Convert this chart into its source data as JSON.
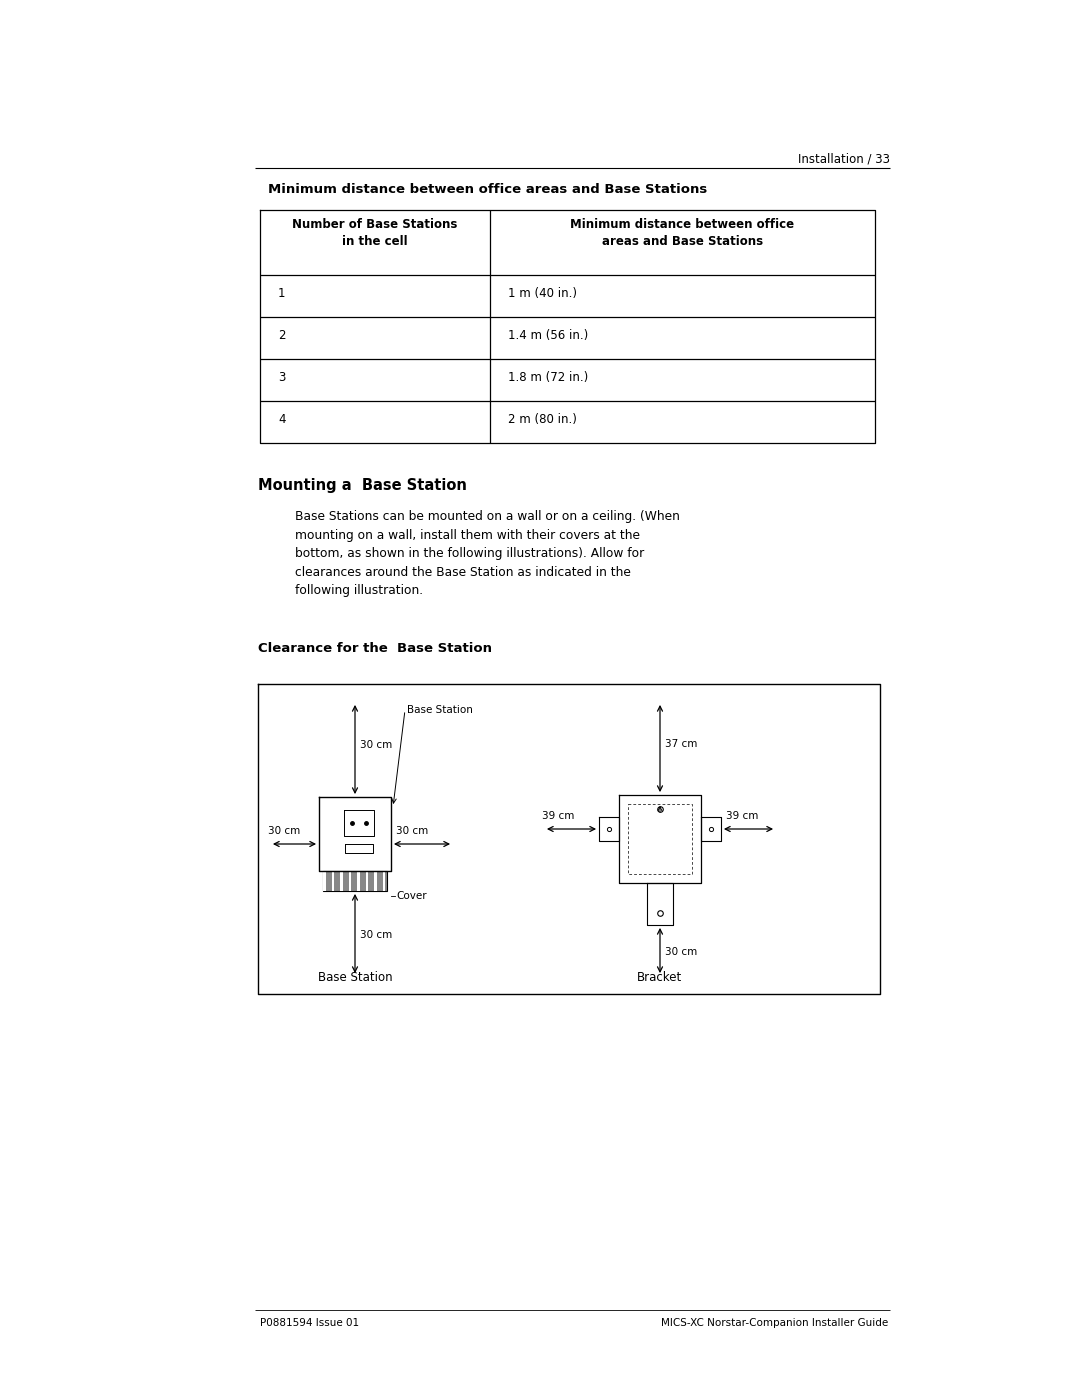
{
  "page_header_right": "Installation / 33",
  "table_title": "Minimum distance between office areas and Base Stations",
  "table_col1_header": "Number of Base Stations\nin the cell",
  "table_col2_header": "Minimum distance between office\nareas and Base Stations",
  "table_rows": [
    [
      "1",
      "1 m (40 in.)"
    ],
    [
      "2",
      "1.4 m (56 in.)"
    ],
    [
      "3",
      "1.8 m (72 in.)"
    ],
    [
      "4",
      "2 m (80 in.)"
    ]
  ],
  "section_title": "Mounting a  Base Station",
  "section_body": "Base Stations can be mounted on a wall or on a ceiling. (When\nmounting on a wall, install them with their covers at the\nbottom, as shown in the following illustrations). Allow for\nclearances around the Base Station as indicated in the\nfollowing illustration.",
  "clearance_title": "Clearance for the  Base Station",
  "bs_label": "Base Station",
  "bracket_label": "Bracket",
  "bs_top_label": "Base Station",
  "cover_label": "Cover",
  "left_top_dist": "30 cm",
  "left_left_dist": "30 cm",
  "left_right_dist": "30 cm",
  "left_bottom_dist": "30 cm",
  "right_top_dist": "37 cm",
  "right_left_dist": "39 cm",
  "right_right_dist": "39 cm",
  "right_bottom_dist": "30 cm",
  "footer_left": "P0881594 Issue 01",
  "footer_right": "MICS-XC Norstar-Companion Installer Guide",
  "bg_color": "#ffffff",
  "text_color": "#000000",
  "line_color": "#000000"
}
